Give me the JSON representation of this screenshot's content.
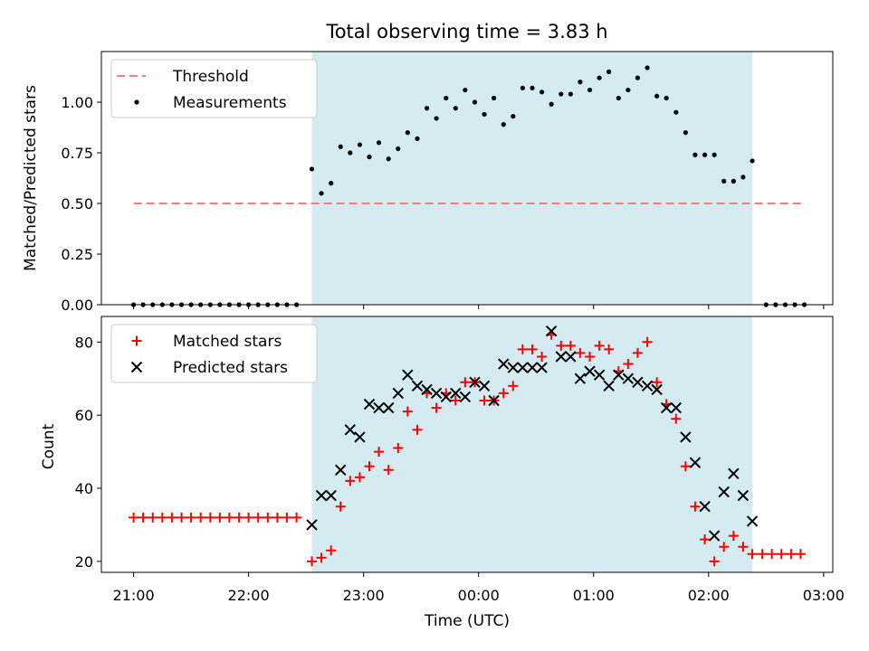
{
  "chart_data": [
    {
      "type": "scatter",
      "title": "Total observing time = 3.83 h",
      "ylabel": "Matched/Predicted stars",
      "xlabel": "",
      "x_unit": "hours since 21:00 UTC",
      "xlim": [
        -0.28,
        6.08
      ],
      "ylim": [
        0.0,
        1.25
      ],
      "yticks": [
        0.0,
        0.25,
        0.5,
        0.75,
        1.0
      ],
      "ytick_labels": [
        "0.00",
        "0.25",
        "0.50",
        "0.75",
        "1.00"
      ],
      "grid": false,
      "legend_position": "top-left",
      "shaded_region": {
        "x_start": 1.55,
        "x_end": 5.38,
        "color": "#d4ebf2"
      },
      "series": [
        {
          "name": "Threshold",
          "kind": "line-dashed",
          "color": "#f08080",
          "x": [
            0.0,
            5.83
          ],
          "y": [
            0.5,
            0.5
          ]
        },
        {
          "name": "Measurements",
          "kind": "points",
          "color": "#000000",
          "x": [
            0.0,
            0.083,
            0.167,
            0.25,
            0.333,
            0.417,
            0.5,
            0.583,
            0.667,
            0.75,
            0.833,
            0.917,
            1.0,
            1.083,
            1.167,
            1.25,
            1.333,
            1.417,
            1.55,
            1.633,
            1.717,
            1.8,
            1.883,
            1.967,
            2.05,
            2.133,
            2.217,
            2.3,
            2.383,
            2.467,
            2.55,
            2.633,
            2.717,
            2.8,
            2.883,
            2.967,
            3.05,
            3.133,
            3.217,
            3.3,
            3.383,
            3.467,
            3.55,
            3.633,
            3.717,
            3.8,
            3.883,
            3.967,
            4.05,
            4.133,
            4.217,
            4.3,
            4.383,
            4.467,
            4.55,
            4.633,
            4.717,
            4.8,
            4.883,
            4.967,
            5.05,
            5.133,
            5.217,
            5.3,
            5.38,
            5.5,
            5.583,
            5.667,
            5.75,
            5.833
          ],
          "y": [
            0,
            0,
            0,
            0,
            0,
            0,
            0,
            0,
            0,
            0,
            0,
            0,
            0,
            0,
            0,
            0,
            0,
            0,
            0.67,
            0.55,
            0.6,
            0.78,
            0.75,
            0.79,
            0.73,
            0.8,
            0.72,
            0.77,
            0.85,
            0.82,
            0.97,
            0.92,
            1.02,
            0.97,
            1.06,
            1.0,
            0.94,
            1.02,
            0.89,
            0.93,
            1.07,
            1.07,
            1.05,
            0.99,
            1.04,
            1.04,
            1.1,
            1.06,
            1.12,
            1.15,
            1.02,
            1.06,
            1.12,
            1.17,
            1.03,
            1.02,
            0.95,
            0.85,
            0.74,
            0.74,
            0.74,
            0.61,
            0.61,
            0.63,
            0.71,
            0,
            0,
            0,
            0,
            0
          ]
        }
      ]
    },
    {
      "type": "scatter",
      "title": "",
      "ylabel": "Count",
      "xlabel": "Time (UTC)",
      "x_unit": "hours since 21:00 UTC",
      "xlim": [
        -0.28,
        6.08
      ],
      "ylim": [
        17,
        87
      ],
      "yticks": [
        20,
        40,
        60,
        80
      ],
      "ytick_labels": [
        "20",
        "40",
        "60",
        "80"
      ],
      "xticks": [
        0,
        1,
        2,
        3,
        4,
        5,
        6
      ],
      "xtick_labels": [
        "21:00",
        "22:00",
        "23:00",
        "00:00",
        "01:00",
        "02:00",
        "03:00"
      ],
      "grid": false,
      "legend_position": "top-left",
      "shaded_region": {
        "x_start": 1.55,
        "x_end": 5.38,
        "color": "#d4ebf2"
      },
      "series": [
        {
          "name": "Matched stars",
          "marker": "plus",
          "color": "#ff0000",
          "x": [
            0.0,
            0.083,
            0.167,
            0.25,
            0.333,
            0.417,
            0.5,
            0.583,
            0.667,
            0.75,
            0.833,
            0.917,
            1.0,
            1.083,
            1.167,
            1.25,
            1.333,
            1.417,
            1.55,
            1.633,
            1.717,
            1.8,
            1.883,
            1.967,
            2.05,
            2.133,
            2.217,
            2.3,
            2.383,
            2.467,
            2.55,
            2.633,
            2.717,
            2.8,
            2.883,
            2.967,
            3.05,
            3.133,
            3.217,
            3.3,
            3.383,
            3.467,
            3.55,
            3.633,
            3.717,
            3.8,
            3.883,
            3.967,
            4.05,
            4.133,
            4.217,
            4.3,
            4.383,
            4.467,
            4.55,
            4.633,
            4.717,
            4.8,
            4.883,
            4.967,
            5.05,
            5.133,
            5.217,
            5.3,
            5.38,
            5.467,
            5.55,
            5.633,
            5.717,
            5.8
          ],
          "y": [
            32,
            32,
            32,
            32,
            32,
            32,
            32,
            32,
            32,
            32,
            32,
            32,
            32,
            32,
            32,
            32,
            32,
            32,
            20,
            21,
            23,
            35,
            42,
            43,
            46,
            50,
            45,
            51,
            61,
            56,
            66,
            62,
            66,
            64,
            69,
            69,
            64,
            64,
            66,
            68,
            78,
            78,
            76,
            82,
            79,
            79,
            77,
            76,
            79,
            78,
            72,
            74,
            77,
            80,
            69,
            63,
            59,
            46,
            35,
            26,
            20,
            24,
            27,
            24,
            22,
            22,
            22,
            22,
            22,
            22
          ]
        },
        {
          "name": "Predicted stars",
          "marker": "x",
          "color": "#000000",
          "x": [
            1.55,
            1.633,
            1.717,
            1.8,
            1.883,
            1.967,
            2.05,
            2.133,
            2.217,
            2.3,
            2.383,
            2.467,
            2.55,
            2.633,
            2.717,
            2.8,
            2.883,
            2.967,
            3.05,
            3.133,
            3.217,
            3.3,
            3.383,
            3.467,
            3.55,
            3.633,
            3.717,
            3.8,
            3.883,
            3.967,
            4.05,
            4.133,
            4.217,
            4.3,
            4.383,
            4.467,
            4.55,
            4.633,
            4.717,
            4.8,
            4.883,
            4.967,
            5.05,
            5.133,
            5.217,
            5.3,
            5.38
          ],
          "y": [
            30,
            38,
            38,
            45,
            56,
            54,
            63,
            62,
            62,
            66,
            71,
            68,
            67,
            66,
            65,
            66,
            65,
            69,
            68,
            64,
            74,
            73,
            73,
            73,
            73,
            83,
            76,
            76,
            70,
            72,
            71,
            68,
            71,
            70,
            69,
            68,
            67,
            62,
            62,
            54,
            47,
            35,
            27,
            39,
            44,
            38,
            31
          ]
        }
      ]
    }
  ]
}
